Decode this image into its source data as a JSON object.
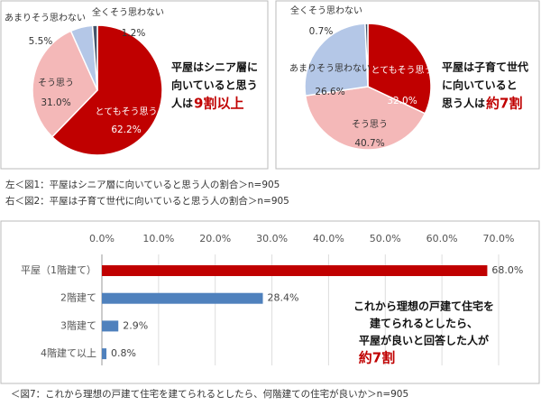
{
  "chart_data": [
    {
      "type": "pie",
      "categories": [
        "とてもそう思う",
        "そう思う",
        "あまりそう思わない",
        "全くそう思わない"
      ],
      "values": [
        62.2,
        31.0,
        5.5,
        1.2
      ],
      "value_labels": [
        "62.2%",
        "31.0%",
        "5.5%",
        "1.2%"
      ],
      "colors": [
        "#c00000",
        "#f4b8b8",
        "#b4c7e7",
        "#44546a"
      ],
      "annotation_lines": [
        "平屋はシニア層に",
        "向いていると思う",
        "人は"
      ],
      "annotation_highlight": "9割以上",
      "caption": "左＜図1：平屋はシニア層に向いていると思う人の割合＞n=905"
    },
    {
      "type": "pie",
      "categories": [
        "とてもそう思う",
        "そう思う",
        "あまりそう思わない",
        "全くそう思わない"
      ],
      "values": [
        32.0,
        40.7,
        26.6,
        0.7
      ],
      "value_labels": [
        "32.0%",
        "40.7%",
        "26.6%",
        "0.7%"
      ],
      "colors": [
        "#c00000",
        "#f4b8b8",
        "#b4c7e7",
        "#44546a"
      ],
      "annotation_lines": [
        "平屋は子育て世代",
        "に向いていると",
        "思う人は"
      ],
      "annotation_highlight": "約7割",
      "caption": "右＜図2：平屋は子育て世代に向いていると思う人の割合＞n=905"
    },
    {
      "type": "bar",
      "orientation": "horizontal",
      "categories": [
        "平屋（1階建て）",
        "2階建て",
        "3階建て",
        "4階建て以上"
      ],
      "values": [
        68.0,
        28.4,
        2.9,
        0.8
      ],
      "value_labels": [
        "68.0%",
        "28.4%",
        "2.9%",
        "0.8%"
      ],
      "colors": [
        "#c00000",
        "#4f81bd",
        "#4f81bd",
        "#4f81bd"
      ],
      "xlim": [
        0,
        70
      ],
      "xticks": [
        {
          "value": 0,
          "label": "0.0%"
        },
        {
          "value": 10,
          "label": "10.0%"
        },
        {
          "value": 20,
          "label": "20.0%"
        },
        {
          "value": 30,
          "label": "30.0%"
        },
        {
          "value": 40,
          "label": "40.0%"
        },
        {
          "value": 50,
          "label": "50.0%"
        },
        {
          "value": 60,
          "label": "60.0%"
        },
        {
          "value": 70,
          "label": "70.0%"
        }
      ],
      "grid": true,
      "annotation_lines": [
        "これから理想の戸建て住宅を",
        "建てられるとしたら、",
        "平屋が良いと回答した人が"
      ],
      "annotation_highlight": "約7割",
      "caption": "＜図7：これから理想の戸建て住宅を建てられるとしたら、何階建ての住宅が良いか＞n=905"
    }
  ]
}
